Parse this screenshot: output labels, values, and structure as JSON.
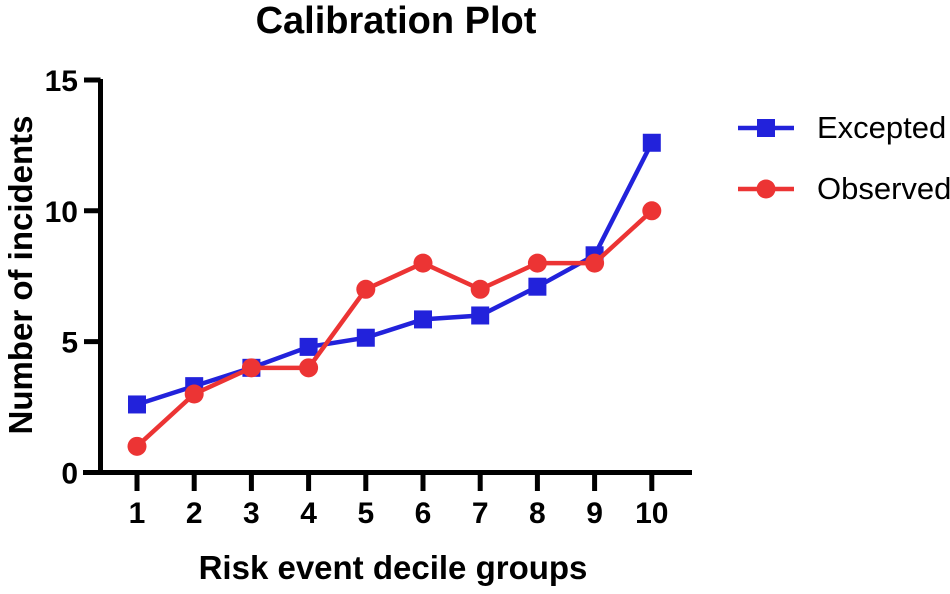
{
  "title": "Calibration Plot",
  "chart_data": {
    "type": "line",
    "title": "Calibration Plot",
    "xlabel": "Risk event decile groups",
    "ylabel": "Number of incidents",
    "categories": [
      "1",
      "2",
      "3",
      "4",
      "5",
      "6",
      "7",
      "8",
      "9",
      "10"
    ],
    "x": [
      1,
      2,
      3,
      4,
      5,
      6,
      7,
      8,
      9,
      10
    ],
    "ylim": [
      0,
      15
    ],
    "yticks": [
      0,
      5,
      10,
      15
    ],
    "grid": false,
    "legend_position": "right",
    "axis_color": "#000000",
    "series": [
      {
        "name": "Excepted",
        "marker": "square",
        "color": "#2222DB",
        "values": [
          2.6,
          3.3,
          4.0,
          4.8,
          5.15,
          5.85,
          6.0,
          7.1,
          8.3,
          12.6
        ]
      },
      {
        "name": "Observed",
        "marker": "circle",
        "color": "#EC3434",
        "values": [
          1,
          3,
          4,
          4,
          7,
          8,
          7,
          8,
          8,
          10
        ]
      }
    ]
  }
}
